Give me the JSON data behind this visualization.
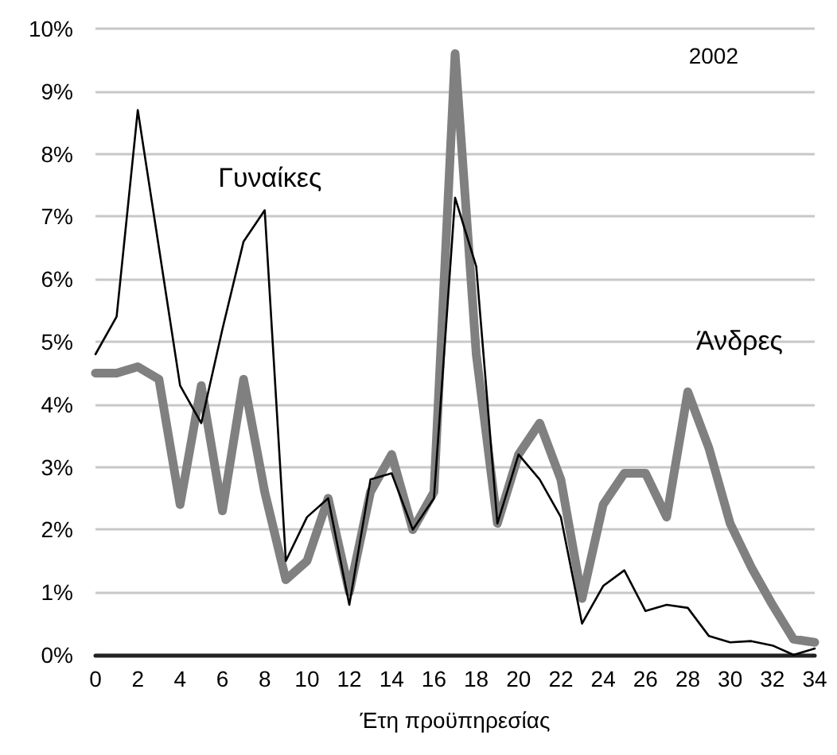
{
  "chart_data": {
    "type": "line",
    "xlabel": "Έτη προϋπηρεσίας",
    "annotations": [
      "2002"
    ],
    "x": [
      0,
      1,
      2,
      3,
      4,
      5,
      6,
      7,
      8,
      9,
      10,
      11,
      12,
      13,
      14,
      15,
      16,
      17,
      18,
      19,
      20,
      21,
      22,
      23,
      24,
      25,
      26,
      27,
      28,
      29,
      30,
      31,
      32,
      33,
      34
    ],
    "series": [
      {
        "name": "Γυναίκες",
        "color": "#000000",
        "values": [
          4.8,
          5.4,
          8.7,
          6.5,
          4.3,
          3.7,
          5.2,
          6.6,
          7.1,
          1.5,
          2.2,
          2.5,
          0.8,
          2.8,
          2.9,
          2.0,
          2.5,
          7.3,
          6.2,
          2.1,
          3.2,
          2.8,
          2.2,
          0.5,
          1.1,
          1.35,
          0.7,
          0.8,
          0.75,
          0.3,
          0.2,
          0.22,
          0.15,
          0.0,
          0.1
        ]
      },
      {
        "name": "Άνδρες",
        "color": "#808080",
        "values": [
          4.5,
          4.5,
          4.6,
          4.4,
          2.4,
          4.3,
          2.3,
          4.4,
          2.6,
          1.2,
          1.5,
          2.5,
          1.0,
          2.6,
          3.2,
          2.0,
          2.6,
          9.6,
          4.8,
          2.1,
          3.2,
          3.7,
          2.8,
          0.9,
          2.4,
          2.9,
          2.9,
          2.2,
          4.2,
          3.3,
          2.1,
          1.4,
          0.8,
          0.25,
          0.2
        ]
      }
    ],
    "xlim": [
      0,
      34
    ],
    "xticks": [
      0,
      2,
      4,
      6,
      8,
      10,
      12,
      14,
      16,
      18,
      20,
      22,
      24,
      26,
      28,
      30,
      32,
      34
    ],
    "ylim": [
      0,
      10
    ],
    "yticks": [
      {
        "value": 0,
        "label": "0%"
      },
      {
        "value": 1,
        "label": "1%"
      },
      {
        "value": 2,
        "label": "2%"
      },
      {
        "value": 3,
        "label": "3%"
      },
      {
        "value": 4,
        "label": "4%"
      },
      {
        "value": 5,
        "label": "5%"
      },
      {
        "value": 6,
        "label": "6%"
      },
      {
        "value": 7,
        "label": "7%"
      },
      {
        "value": 8,
        "label": "8%"
      },
      {
        "value": 9,
        "label": "9%"
      },
      {
        "value": 10,
        "label": "10%"
      }
    ],
    "grid": "y",
    "legend": false,
    "marker": "none",
    "line_style": "solid"
  }
}
